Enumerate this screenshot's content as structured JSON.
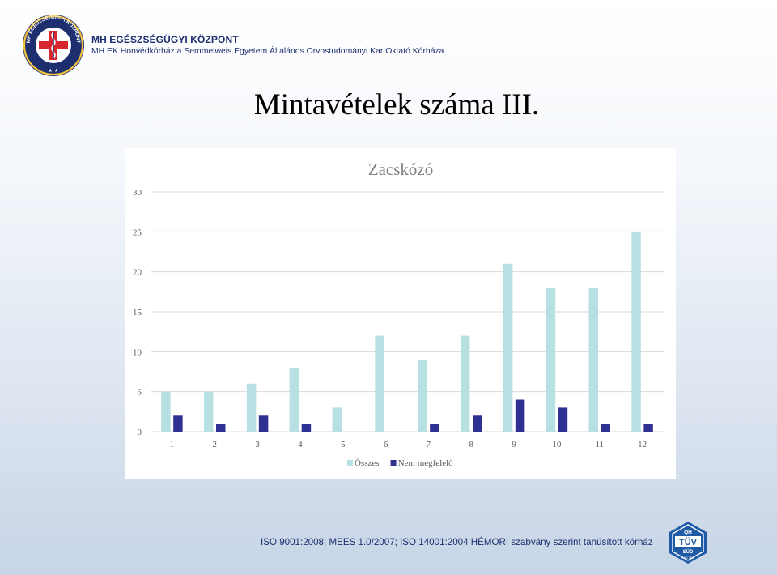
{
  "header": {
    "org_title": "MH EGÉSZSÉGÜGYI KÖZPONT",
    "org_subtitle": "MH EK Honvédkórház a Semmelweis Egyetem Általános Orvostudományi Kar Oktató Kórháza",
    "logo_ring_text": "MH EGÉSZSÉGÜGYI KÖZPONT",
    "logo_stars": "★ ★"
  },
  "slide": {
    "title": "Mintavételek száma III."
  },
  "footer": {
    "text": "ISO 9001:2008; MEES 1.0/2007; ISO 14001:2004 HÉMORI szabvány szerint tanúsított kórház",
    "badge_top": "QH",
    "badge_main": "TÜV",
    "badge_sub": "SÜD",
    "badge_bottom": "DAR TÜV"
  },
  "colors": {
    "series_osszes": "#b7e0e3",
    "series_nem": "#2e3192",
    "gridline": "#d9d9d9",
    "axis_text": "#595959",
    "brand_navy": "#1d2f6f",
    "brand_red": "#d7262e"
  },
  "chart_data": {
    "type": "bar",
    "title": "Zacskózó",
    "categories": [
      "1",
      "2",
      "3",
      "4",
      "5",
      "6",
      "7",
      "8",
      "9",
      "10",
      "11",
      "12"
    ],
    "series": [
      {
        "name": "Összes",
        "values": [
          5,
          5,
          6,
          8,
          3,
          12,
          9,
          12,
          21,
          18,
          18,
          25
        ]
      },
      {
        "name": "Nem megfelelő",
        "values": [
          2,
          1,
          2,
          1,
          0,
          0,
          1,
          2,
          4,
          3,
          1,
          1
        ]
      }
    ],
    "yticks": [
      0,
      5,
      10,
      15,
      20,
      25,
      30
    ],
    "ylim": [
      0,
      30
    ],
    "xlabel": "",
    "ylabel": "",
    "grid": true,
    "legend": "bottom"
  }
}
